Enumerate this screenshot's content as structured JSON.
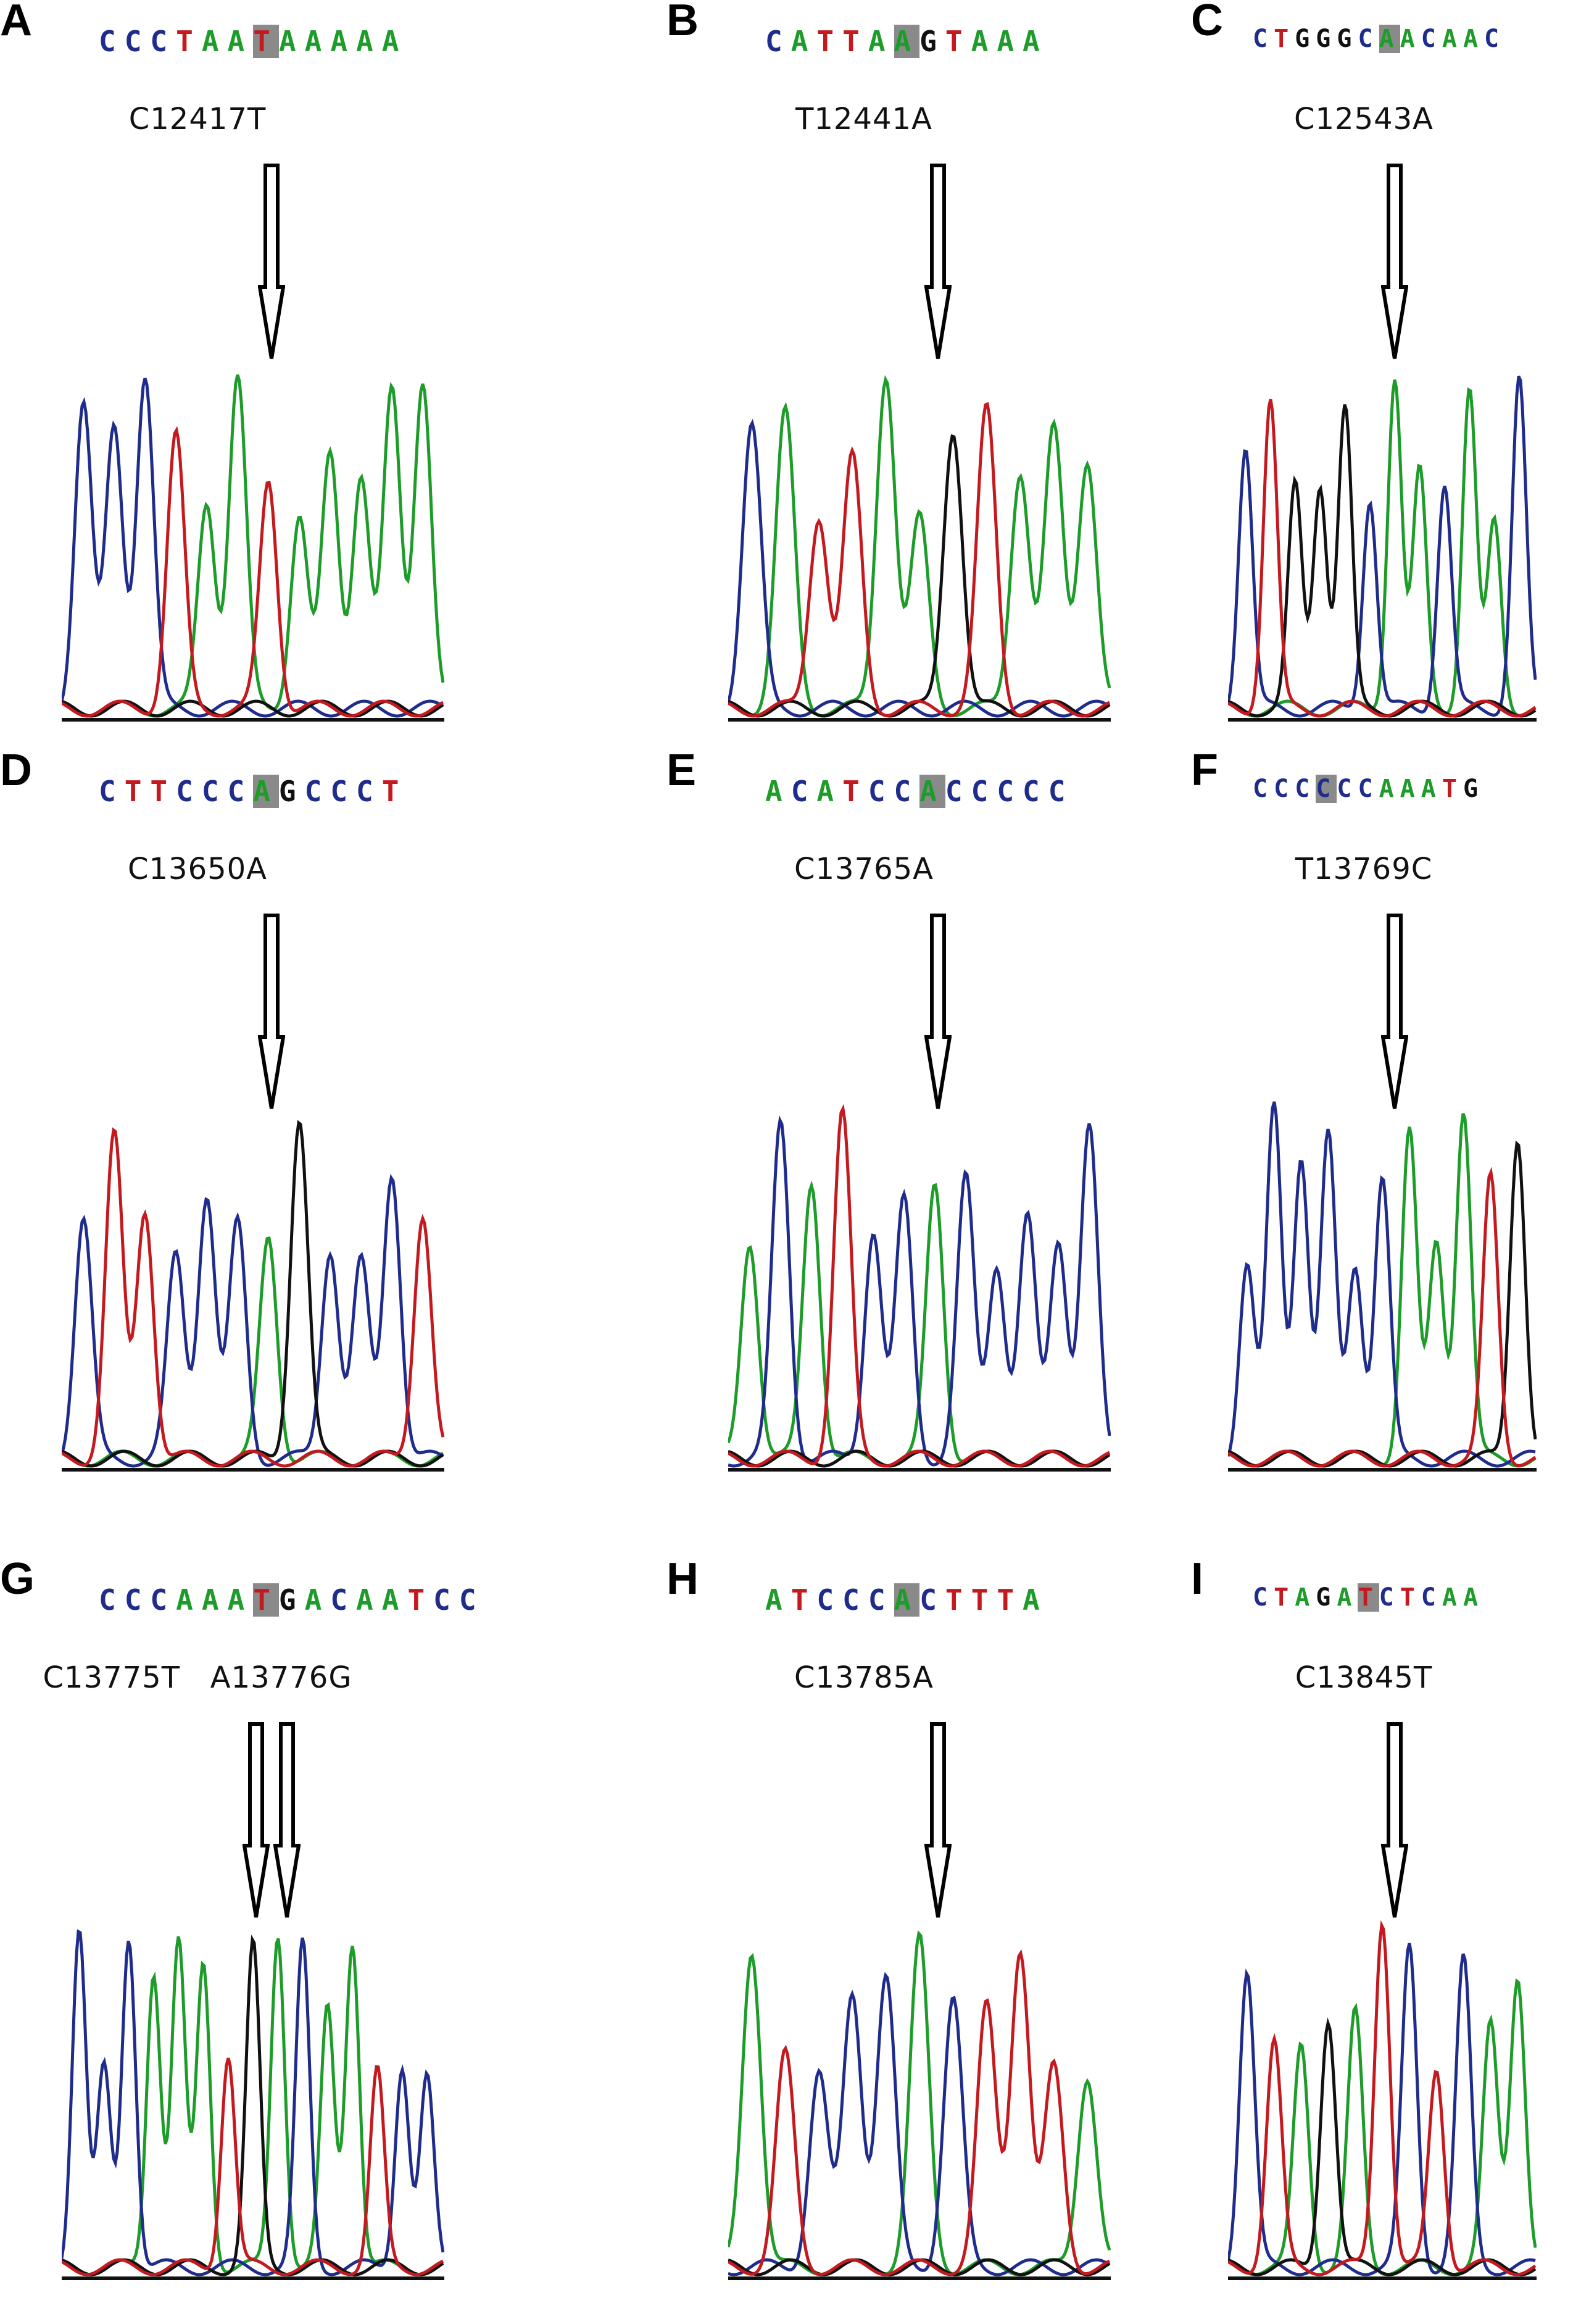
{
  "colors": {
    "A": "#1e9c2a",
    "C": "#1f2c8c",
    "G": "#111111",
    "T": "#c41a1f"
  },
  "panels": [
    {
      "letter": "A",
      "sequence": "CCCTAATAAAAA",
      "highlight": 6,
      "mutation": "C12417T",
      "arrows": 1
    },
    {
      "letter": "B",
      "sequence": "CATTAAGTAAA",
      "highlight": 5,
      "mutation": "T12441A",
      "arrows": 1
    },
    {
      "letter": "C",
      "sequence": "CTGGGCAACAAC",
      "highlight": 6,
      "mutation": "C12543A",
      "arrows": 1
    },
    {
      "letter": "D",
      "sequence": "CTTCCCAGCCCT",
      "highlight": 6,
      "mutation": "C13650A",
      "arrows": 1
    },
    {
      "letter": "E",
      "sequence": "ACATCCACCCCC",
      "highlight": 6,
      "mutation": "C13765A",
      "arrows": 1
    },
    {
      "letter": "F",
      "sequence": "CCCCCCAAATG",
      "highlight": 3,
      "mutation": "T13769C",
      "arrows": 1
    },
    {
      "letter": "G",
      "sequence": "CCCAAATGACAATCC",
      "highlight": 6,
      "mutation": "C13775T   A13776G",
      "arrows": 2
    },
    {
      "letter": "H",
      "sequence": "ATCCCACTTTA",
      "highlight": 5,
      "mutation": "C13785A",
      "arrows": 1
    },
    {
      "letter": "I",
      "sequence": "CTAGATCTCAA",
      "highlight": 5,
      "mutation": "C13845T",
      "arrows": 1
    }
  ]
}
